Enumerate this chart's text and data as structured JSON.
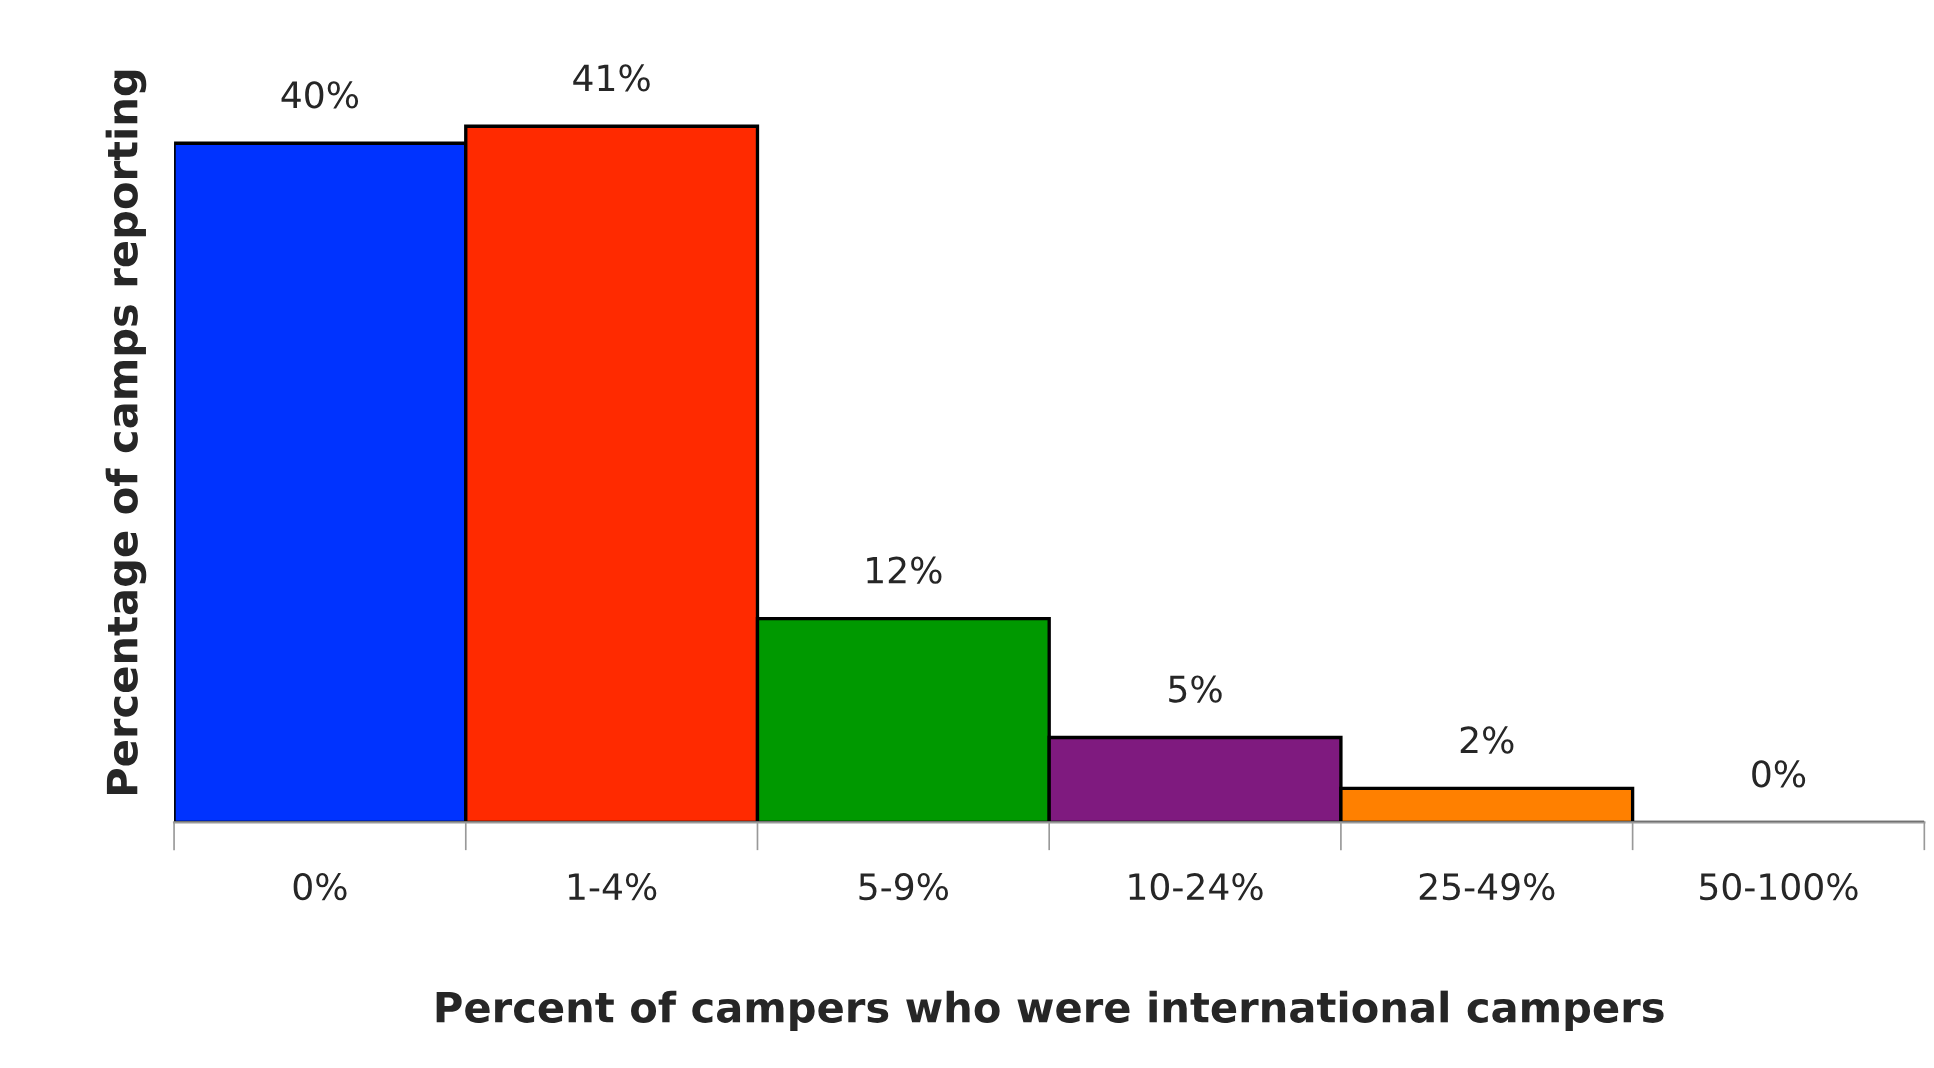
{
  "chart_data": {
    "type": "bar",
    "xlabel": "Percent of campers who were international campers",
    "ylabel": "Percentage of camps reporting",
    "categories": [
      "0%",
      "1-4%",
      "5-9%",
      "10-24%",
      "25-49%",
      "50-100%"
    ],
    "values": [
      40,
      41,
      12,
      5,
      2,
      0
    ],
    "colors": [
      "#0033ff",
      "#ff2a00",
      "#009900",
      "#7f1a7f",
      "#ff8000",
      "#000000"
    ],
    "value_labels": [
      "40%",
      "41%",
      "12%",
      "5%",
      "2%",
      "0%"
    ],
    "grid": false,
    "legend": false
  }
}
